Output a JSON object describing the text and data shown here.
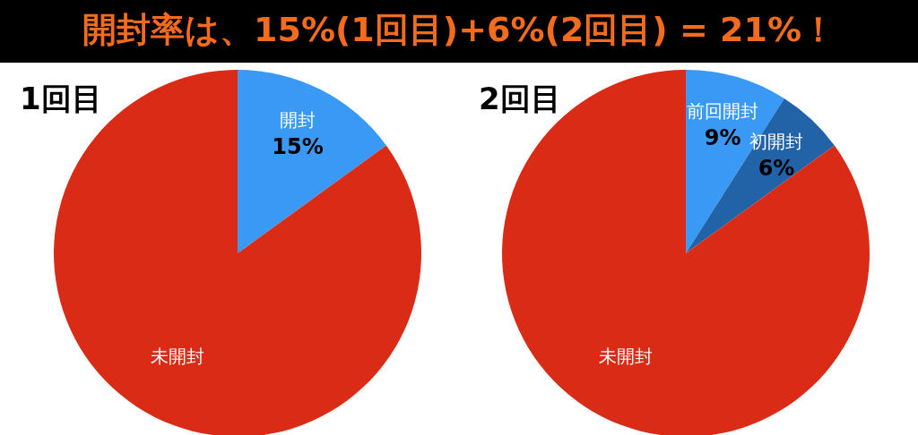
{
  "chart_data": [
    {
      "type": "other",
      "title": "開封率は、15%(1回目)+6%(2回目) = 21%！"
    },
    {
      "type": "pie",
      "title": "1回目",
      "categories": [
        "開封",
        "未開封"
      ],
      "values": [
        15,
        85
      ],
      "colors": [
        "#3a99f5",
        "#d92b16"
      ],
      "value_labels": [
        "15%",
        null
      ]
    },
    {
      "type": "pie",
      "title": "2回目",
      "categories": [
        "前回開封",
        "初開封",
        "未開封"
      ],
      "values": [
        9,
        6,
        85
      ],
      "colors": [
        "#3a99f5",
        "#2263a8",
        "#d92b16"
      ],
      "value_labels": [
        "9%",
        "6%",
        null
      ]
    }
  ]
}
